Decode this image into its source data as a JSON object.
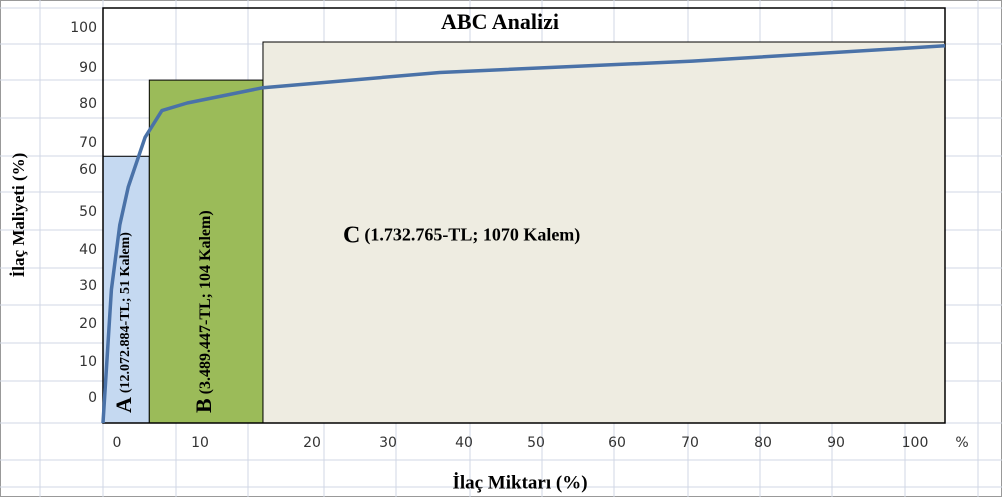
{
  "chart_data": {
    "type": "line",
    "title": "ABC Analizi",
    "y_label": "İlaç Maliyeti (%)",
    "x_label": "İlaç Miktarı (%)",
    "xlim": [
      0,
      100
    ],
    "ylim": [
      0,
      100
    ],
    "y_cell_labels": [
      "100",
      "90",
      "80",
      "70",
      "60",
      "50",
      "40",
      "30",
      "20",
      "10",
      "0"
    ],
    "x_cell_labels": [
      "0",
      "10",
      "20",
      "30",
      "40",
      "50",
      "60",
      "70",
      "80",
      "90",
      "100",
      "%"
    ],
    "regions": [
      {
        "name": "A",
        "label": "(12.072.884-TL; 51 Kalem)",
        "x": [
          0,
          5.5
        ],
        "top": 70,
        "color": "#c5d9f1"
      },
      {
        "name": "B",
        "label": "(3.489.447-TL; 104 Kalem)",
        "x": [
          5.5,
          19
        ],
        "top": 90,
        "color": "#9bbb59"
      },
      {
        "name": "C",
        "label": "(1.732.765-TL; 1070 Kalem)",
        "x": [
          19,
          100
        ],
        "top": 100,
        "color": "#eeece1"
      }
    ],
    "series": [
      {
        "color": "#4a72a8",
        "x": [
          0,
          1,
          2,
          3,
          5,
          7,
          10,
          19,
          40,
          70,
          100
        ],
        "values": [
          0,
          35,
          52,
          62,
          75,
          82,
          84,
          88,
          92,
          95,
          99
        ]
      }
    ]
  }
}
